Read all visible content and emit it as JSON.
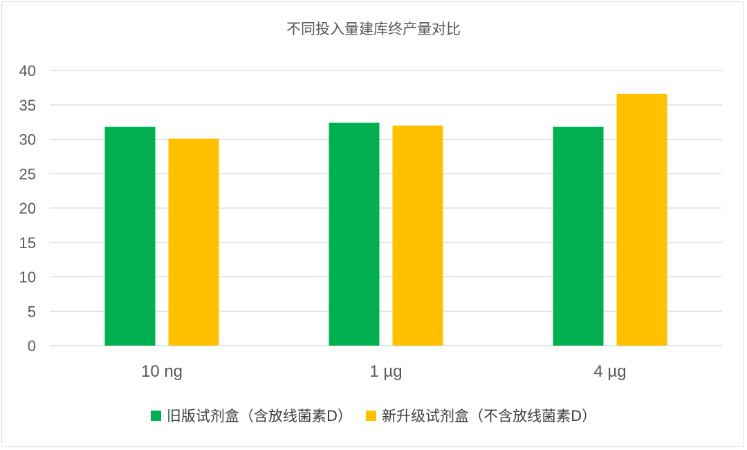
{
  "chart_data": {
    "type": "bar",
    "title": "不同投入量建库终产量对比",
    "categories": [
      "10 ng",
      "1 µg",
      "4 µg"
    ],
    "series": [
      {
        "name": "旧版试剂盒（含放线菌素D）",
        "color": "#00b050",
        "values": [
          31.8,
          32.4,
          31.8
        ]
      },
      {
        "name": "新升级试剂盒（不含放线菌素D）",
        "color": "#ffc000",
        "values": [
          30.1,
          32.0,
          36.6
        ]
      }
    ],
    "yticks": [
      "0",
      "5",
      "10",
      "15",
      "20",
      "25",
      "30",
      "35",
      "40"
    ],
    "ylim": [
      0,
      40
    ],
    "grid": true,
    "legend_position": "bottom"
  }
}
